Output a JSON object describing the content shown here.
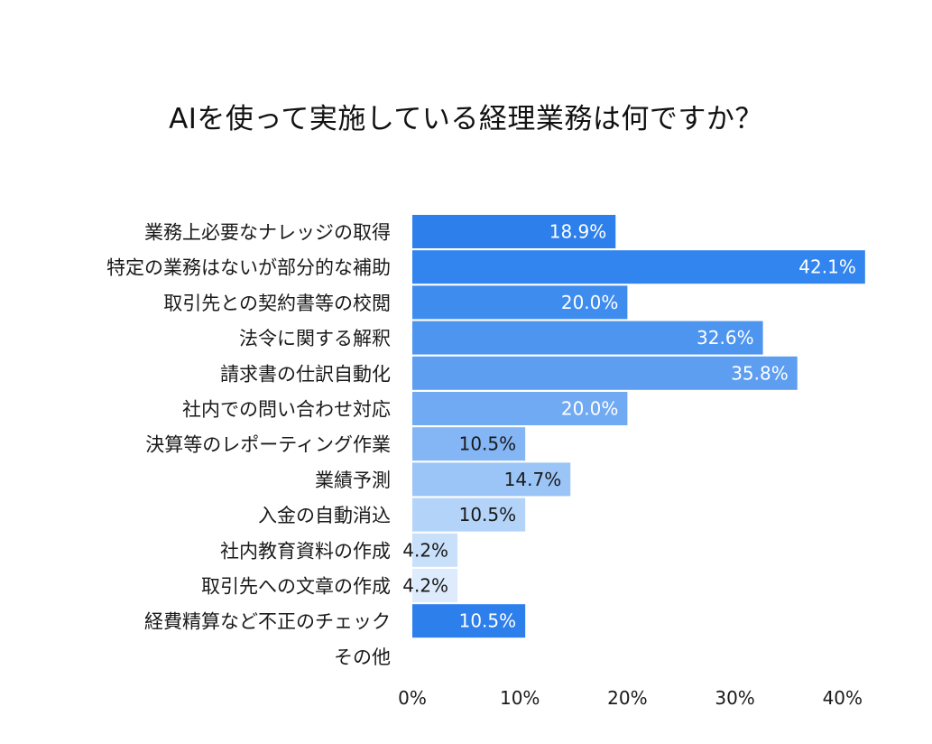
{
  "chart_data": {
    "type": "bar",
    "orientation": "horizontal",
    "title": "AIを使って実施している経理業務は何ですか？",
    "categories": [
      "業務上必要なナレッジの取得",
      "特定の業務はないが部分的な補助",
      "取引先との契約書等の校閲",
      "法令に関する解釈",
      "請求書の仕訳自動化",
      "社内での問い合わせ対応",
      "決算等のレポーティング作業",
      "業績予測",
      "入金の自動消込",
      "社内教育資料の作成",
      "取引先への文章の作成",
      "経費精算など不正のチェック",
      "その他"
    ],
    "values": [
      18.9,
      42.1,
      20.0,
      32.6,
      35.8,
      20.0,
      10.5,
      14.7,
      10.5,
      4.2,
      4.2,
      10.5,
      null
    ],
    "data_labels": [
      "18.9%",
      "42.1%",
      "20.0%",
      "32.6%",
      "35.8%",
      "20.0%",
      "10.5%",
      "14.7%",
      "10.5%",
      "4.2%",
      "4.2%",
      "10.5%",
      ""
    ],
    "colors": [
      "#2d7fec",
      "#3285ee",
      "#3f8cef",
      "#4e95f0",
      "#5d9ef1",
      "#70aaf3",
      "#84b6f5",
      "#9bc4f7",
      "#b3d3f9",
      "#c9e0fb",
      "#ddebfc",
      "#2d7fec",
      "#ffffff"
    ],
    "label_colors": [
      "#ffffff",
      "#ffffff",
      "#ffffff",
      "#ffffff",
      "#ffffff",
      "#ffffff",
      "#1a1a1a",
      "#1a1a1a",
      "#1a1a1a",
      "#1a1a1a",
      "#1a1a1a",
      "#ffffff",
      "#1a1a1a"
    ],
    "xlim": [
      0,
      40
    ],
    "xticks": [
      0,
      10,
      20,
      30,
      40
    ],
    "xtick_labels": [
      "0%",
      "10%",
      "20%",
      "30%",
      "40%"
    ],
    "xlabel": "",
    "ylabel": "",
    "grid": false,
    "legend": "none"
  }
}
